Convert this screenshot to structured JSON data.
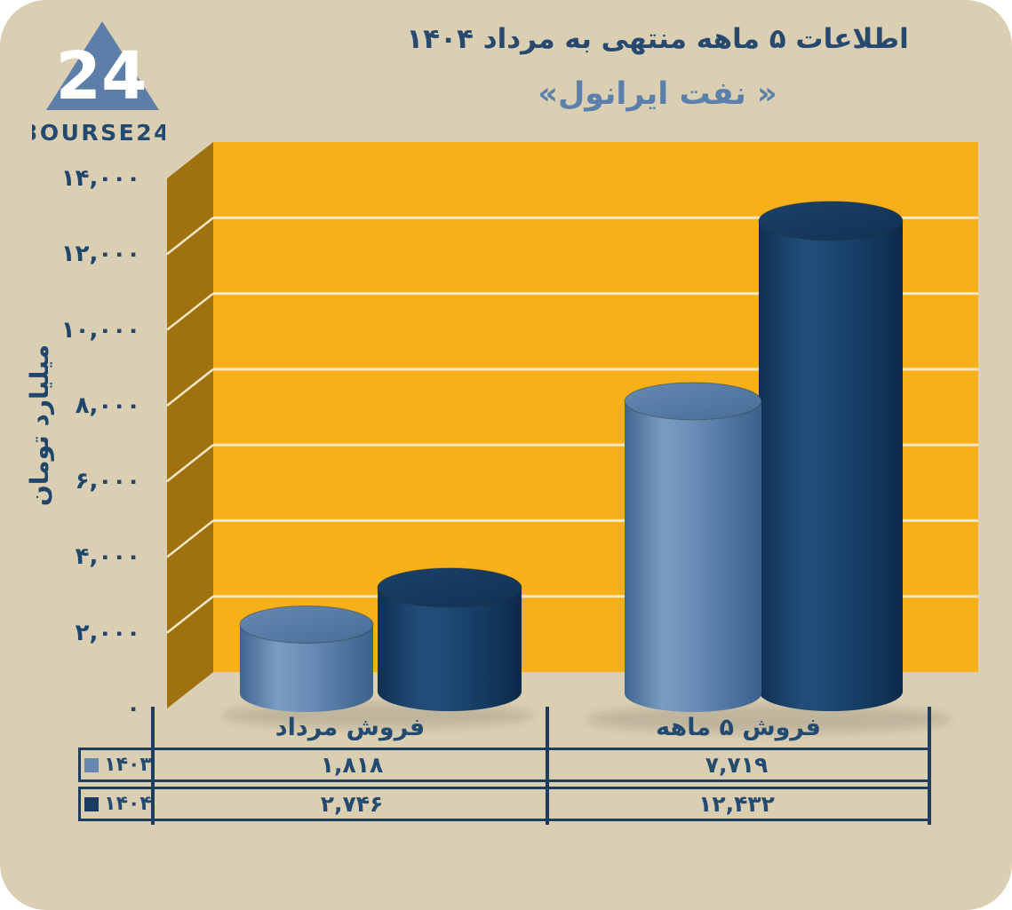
{
  "logo": {
    "mark": "24",
    "brand": "3OURSE24"
  },
  "header": {
    "title": "اطلاعات ۵ ماهه منتهی به مرداد ۱۴۰۴",
    "subtitle": "« نفت ایرانول»"
  },
  "chart_data": {
    "type": "bar",
    "style": "3d-cylinder",
    "categories": [
      "فروش مرداد",
      "فروش ۵ ماهه"
    ],
    "series": [
      {
        "name": "۱۴۰۳",
        "color": "#6687b0",
        "values": [
          1818,
          7719
        ],
        "value_labels": [
          "۱,۸۱۸",
          "۷,۷۱۹"
        ]
      },
      {
        "name": "۱۴۰۴",
        "color": "#1a3c60",
        "values": [
          2746,
          12432
        ],
        "value_labels": [
          "۲,۷۴۶",
          "۱۲,۴۳۲"
        ]
      }
    ],
    "ylabel": "میلیارد تومان",
    "ylim": [
      0,
      14000
    ],
    "ytick_step": 2000,
    "yticks": [
      {
        "value": 14000,
        "label": "۱۴,۰۰۰"
      },
      {
        "value": 12000,
        "label": "۱۲,۰۰۰"
      },
      {
        "value": 10000,
        "label": "۱۰,۰۰۰"
      },
      {
        "value": 8000,
        "label": "۸,۰۰۰"
      },
      {
        "value": 6000,
        "label": "۶,۰۰۰"
      },
      {
        "value": 4000,
        "label": "۴,۰۰۰"
      },
      {
        "value": 2000,
        "label": "۲,۰۰۰"
      },
      {
        "value": 0,
        "label": "۰"
      }
    ],
    "legend_position": "table-left",
    "grid": true,
    "plot_colors": {
      "back_wall": "#f8b01a",
      "side_wall": "#a0720f",
      "gridline": "#f3e7c6",
      "background": "#dbcfb3"
    }
  },
  "table": {
    "columns": [
      "فروش مرداد",
      "فروش ۵ ماهه"
    ],
    "rows": [
      {
        "year": "۱۴۰۳",
        "cells": [
          "۱,۸۱۸",
          "۷,۷۱۹"
        ]
      },
      {
        "year": "۱۴۰۴",
        "cells": [
          "۲,۷۴۶",
          "۱۲,۴۳۲"
        ]
      }
    ]
  }
}
